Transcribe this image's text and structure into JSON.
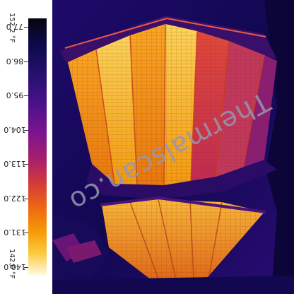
{
  "scale": {
    "top_label": "77.0",
    "bottom_label": "140.0",
    "max_reading": "152.2 °F",
    "min_reading": "142.0 °F",
    "ticks": [
      "140.0",
      "131.0",
      "122.0",
      "113.0",
      "104.0",
      "95.0",
      "86.0",
      "77.0"
    ]
  },
  "watermark": "Thermalscan.co",
  "palette": {
    "cold": "#0a0630",
    "mid": "#a8206a",
    "warm": "#f79a08",
    "hot": "#fffbe6"
  }
}
